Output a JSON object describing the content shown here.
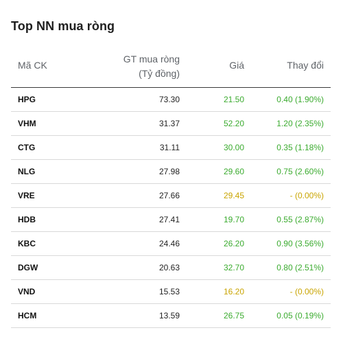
{
  "title": "Top NN mua ròng",
  "columns": {
    "symbol": "Mã CK",
    "value_line1": "GT mua ròng",
    "value_line2": "(Tỷ đồng)",
    "price": "Giá",
    "change": "Thay đổi"
  },
  "colors": {
    "up": "#3bab2f",
    "reference": "#c9a400"
  },
  "rows": [
    {
      "symbol": "HPG",
      "value": "73.30",
      "price": "21.50",
      "change": "0.40 (1.90%)",
      "status": "up"
    },
    {
      "symbol": "VHM",
      "value": "31.37",
      "price": "52.20",
      "change": "1.20 (2.35%)",
      "status": "up"
    },
    {
      "symbol": "CTG",
      "value": "31.11",
      "price": "30.00",
      "change": "0.35 (1.18%)",
      "status": "up"
    },
    {
      "symbol": "NLG",
      "value": "27.98",
      "price": "29.60",
      "change": "0.75 (2.60%)",
      "status": "up"
    },
    {
      "symbol": "VRE",
      "value": "27.66",
      "price": "29.45",
      "change": "- (0.00%)",
      "status": "ref"
    },
    {
      "symbol": "HDB",
      "value": "27.41",
      "price": "19.70",
      "change": "0.55 (2.87%)",
      "status": "up"
    },
    {
      "symbol": "KBC",
      "value": "24.46",
      "price": "26.20",
      "change": "0.90 (3.56%)",
      "status": "up"
    },
    {
      "symbol": "DGW",
      "value": "20.63",
      "price": "32.70",
      "change": "0.80 (2.51%)",
      "status": "up"
    },
    {
      "symbol": "VND",
      "value": "15.53",
      "price": "16.20",
      "change": "- (0.00%)",
      "status": "ref"
    },
    {
      "symbol": "HCM",
      "value": "13.59",
      "price": "26.75",
      "change": "0.05 (0.19%)",
      "status": "up"
    }
  ]
}
